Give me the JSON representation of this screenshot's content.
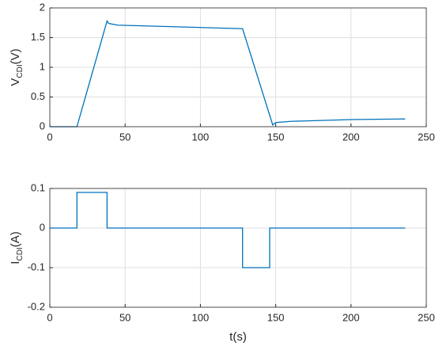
{
  "chart_data": [
    {
      "type": "line",
      "ylabel": [
        "V",
        "CDI",
        "(V)"
      ],
      "x": [
        0,
        18,
        38,
        39,
        45,
        128,
        148,
        150,
        160,
        200,
        236
      ],
      "series": [
        {
          "color": "#0072bd",
          "values": [
            0,
            0,
            1.78,
            1.74,
            1.71,
            1.65,
            0.03,
            0.07,
            0.09,
            0.12,
            0.13
          ]
        }
      ],
      "xlim": [
        0,
        250
      ],
      "xticks": [
        0,
        50,
        100,
        150,
        200,
        250
      ],
      "ylim": [
        0,
        2
      ],
      "yticks": [
        0,
        0.5,
        1,
        1.5,
        2
      ],
      "grid": true
    },
    {
      "type": "line",
      "ylabel": [
        "I",
        "CDI",
        "(A)"
      ],
      "xlabel": "t(s)",
      "x": [
        0,
        18,
        18,
        38,
        38,
        128,
        128,
        146,
        146,
        236
      ],
      "series": [
        {
          "color": "#0072bd",
          "values": [
            0,
            0,
            0.09,
            0.09,
            0,
            0,
            -0.1,
            -0.1,
            0,
            0
          ]
        }
      ],
      "xlim": [
        0,
        250
      ],
      "xticks": [
        0,
        50,
        100,
        150,
        200,
        250
      ],
      "ylim": [
        -0.2,
        0.1
      ],
      "yticks": [
        -0.2,
        -0.1,
        0,
        0.1
      ],
      "grid": true
    }
  ]
}
